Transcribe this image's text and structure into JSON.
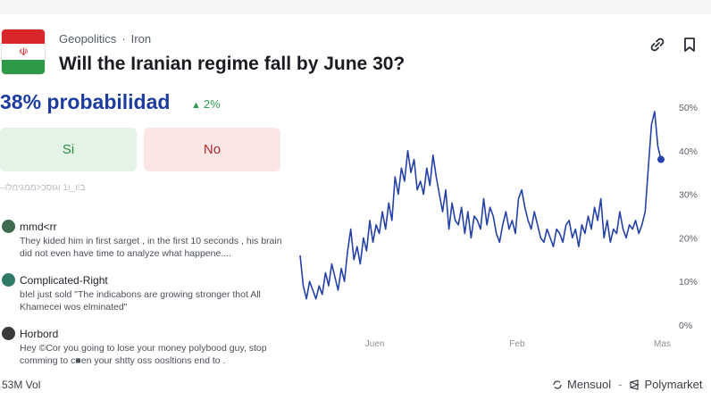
{
  "header": {
    "category": "Geopolitics",
    "tag": "Iron",
    "title": "Will the Iranian regime fall by June 30?"
  },
  "market": {
    "probability_text": "38% probabilidad",
    "change_text": "2%",
    "yes_label": "Si",
    "no_label": "No"
  },
  "comments": {
    "faded_text": "–ב!ו_ו1 וגוסכ<ממגימלו",
    "items": [
      {
        "name": "mmd<rr",
        "text": "They kided him in first sarget , in the first 10 seconds , his brain did not even have time to analyze what happene....",
        "avatar_color": "#3e6a4e"
      },
      {
        "name": "Complicated-Right",
        "text": "bIel just sold \"The indicabons are growing stronger thot All Khamecei wos elminated\"",
        "avatar_color": "#2f7a66"
      },
      {
        "name": "Horbord",
        "text": "Hey ©Cor you going to lose your money polybood guy, stop comming to c■en your shtty oss oosltions end to .",
        "avatar_color": "#3b3b3b"
      }
    ]
  },
  "footer": {
    "volume": "53M Vol",
    "period": "Mensuol",
    "brand": "Polymarket"
  },
  "colors": {
    "accent": "#1d3d9e",
    "line": "#2442a8",
    "yes": "#2c8a43",
    "no": "#a82c2c"
  },
  "chart_data": {
    "type": "line",
    "title": "",
    "xlabel": "",
    "ylabel": "",
    "y_ticks": [
      "50%",
      "40%",
      "30%",
      "20%",
      "10%",
      "0%"
    ],
    "x_ticks": [
      "Juen",
      "Feb",
      "Mas"
    ],
    "ylim": [
      0,
      50
    ],
    "current_value": 38,
    "series": [
      {
        "values": [
          16,
          9,
          6,
          10,
          8,
          6,
          9,
          7,
          12,
          9,
          14,
          11,
          8,
          13,
          10,
          17,
          22,
          15,
          18,
          14,
          20,
          17,
          24,
          19,
          23,
          21,
          26,
          22,
          28,
          24,
          34,
          30,
          36,
          33,
          40,
          35,
          38,
          31,
          33,
          30,
          36,
          32,
          39,
          34,
          30,
          26,
          31,
          22,
          28,
          24,
          23,
          27,
          21,
          26,
          20,
          25,
          24,
          22,
          29,
          23,
          27,
          25,
          21,
          19,
          23,
          26,
          22,
          24,
          21,
          29,
          31,
          27,
          24,
          22,
          26,
          23,
          20,
          19,
          22,
          20,
          18,
          22,
          21,
          19,
          23,
          24,
          20,
          22,
          18,
          23,
          21,
          25,
          22,
          27,
          24,
          29,
          20,
          24,
          19,
          22,
          21,
          26,
          22,
          20,
          23,
          22,
          24,
          21,
          23,
          26,
          36,
          46,
          49,
          41,
          38
        ]
      }
    ]
  }
}
